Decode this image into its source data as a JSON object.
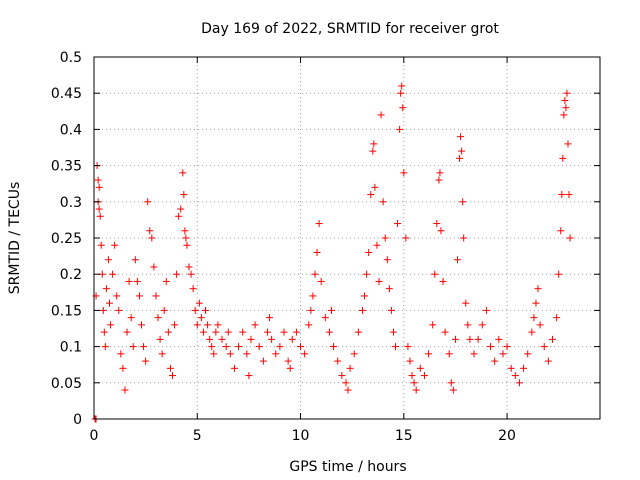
{
  "chart_data": {
    "type": "scatter",
    "title": "Day 169 of 2022, SRMTID for receiver grot",
    "xlabel": "GPS time / hours",
    "ylabel": "SRMTID / TECUs",
    "xlim": [
      0,
      24.5
    ],
    "ylim": [
      0,
      0.5
    ],
    "xticks": [
      0,
      5,
      10,
      15,
      20
    ],
    "xtick_labels": [
      "0",
      "5",
      "10",
      "15",
      "20"
    ],
    "yticks": [
      0,
      0.05,
      0.1,
      0.15,
      0.2,
      0.25,
      0.3,
      0.35,
      0.4,
      0.45,
      0.5
    ],
    "ytick_labels": [
      "0",
      "0.05",
      "0.1",
      "0.15",
      "0.2",
      "0.25",
      "0.3",
      "0.35",
      "0.4",
      "0.45",
      "0.5"
    ],
    "grid": true,
    "marker": "+",
    "color": "#ff0000",
    "series": [
      {
        "name": "SRMTID",
        "points": [
          [
            0.05,
            0.0
          ],
          [
            0.1,
            0.0
          ],
          [
            0.1,
            0.17
          ],
          [
            0.15,
            0.35
          ],
          [
            0.2,
            0.33
          ],
          [
            0.2,
            0.3
          ],
          [
            0.25,
            0.29
          ],
          [
            0.3,
            0.28
          ],
          [
            0.25,
            0.32
          ],
          [
            0.35,
            0.24
          ],
          [
            0.4,
            0.2
          ],
          [
            0.45,
            0.15
          ],
          [
            0.5,
            0.12
          ],
          [
            0.55,
            0.1
          ],
          [
            0.6,
            0.18
          ],
          [
            0.7,
            0.22
          ],
          [
            0.75,
            0.16
          ],
          [
            0.8,
            0.13
          ],
          [
            0.9,
            0.2
          ],
          [
            1.0,
            0.24
          ],
          [
            1.1,
            0.17
          ],
          [
            1.2,
            0.15
          ],
          [
            1.3,
            0.09
          ],
          [
            1.4,
            0.07
          ],
          [
            1.5,
            0.04
          ],
          [
            1.6,
            0.12
          ],
          [
            1.7,
            0.19
          ],
          [
            1.8,
            0.14
          ],
          [
            1.9,
            0.1
          ],
          [
            2.0,
            0.22
          ],
          [
            2.1,
            0.19
          ],
          [
            2.2,
            0.17
          ],
          [
            2.3,
            0.13
          ],
          [
            2.4,
            0.1
          ],
          [
            2.5,
            0.08
          ],
          [
            2.6,
            0.3
          ],
          [
            2.7,
            0.26
          ],
          [
            2.8,
            0.25
          ],
          [
            2.9,
            0.21
          ],
          [
            3.0,
            0.17
          ],
          [
            3.1,
            0.14
          ],
          [
            3.2,
            0.11
          ],
          [
            3.3,
            0.09
          ],
          [
            3.4,
            0.15
          ],
          [
            3.5,
            0.19
          ],
          [
            3.6,
            0.12
          ],
          [
            3.7,
            0.07
          ],
          [
            3.8,
            0.06
          ],
          [
            3.9,
            0.13
          ],
          [
            4.0,
            0.2
          ],
          [
            4.1,
            0.28
          ],
          [
            4.2,
            0.29
          ],
          [
            4.3,
            0.34
          ],
          [
            4.35,
            0.31
          ],
          [
            4.4,
            0.26
          ],
          [
            4.45,
            0.25
          ],
          [
            4.5,
            0.24
          ],
          [
            4.6,
            0.21
          ],
          [
            4.7,
            0.2
          ],
          [
            4.8,
            0.18
          ],
          [
            4.9,
            0.15
          ],
          [
            5.0,
            0.13
          ],
          [
            5.1,
            0.16
          ],
          [
            5.2,
            0.14
          ],
          [
            5.3,
            0.12
          ],
          [
            5.4,
            0.15
          ],
          [
            5.5,
            0.13
          ],
          [
            5.6,
            0.11
          ],
          [
            5.7,
            0.1
          ],
          [
            5.8,
            0.09
          ],
          [
            5.9,
            0.12
          ],
          [
            6.0,
            0.13
          ],
          [
            6.2,
            0.11
          ],
          [
            6.4,
            0.1
          ],
          [
            6.5,
            0.12
          ],
          [
            6.6,
            0.09
          ],
          [
            6.8,
            0.07
          ],
          [
            7.0,
            0.1
          ],
          [
            7.2,
            0.12
          ],
          [
            7.4,
            0.09
          ],
          [
            7.5,
            0.06
          ],
          [
            7.6,
            0.11
          ],
          [
            7.8,
            0.13
          ],
          [
            8.0,
            0.1
          ],
          [
            8.2,
            0.08
          ],
          [
            8.4,
            0.12
          ],
          [
            8.5,
            0.14
          ],
          [
            8.6,
            0.11
          ],
          [
            8.8,
            0.09
          ],
          [
            9.0,
            0.1
          ],
          [
            9.2,
            0.12
          ],
          [
            9.4,
            0.08
          ],
          [
            9.5,
            0.07
          ],
          [
            9.6,
            0.11
          ],
          [
            9.8,
            0.12
          ],
          [
            10.0,
            0.1
          ],
          [
            10.2,
            0.09
          ],
          [
            10.4,
            0.13
          ],
          [
            10.5,
            0.15
          ],
          [
            10.6,
            0.17
          ],
          [
            10.7,
            0.2
          ],
          [
            10.8,
            0.23
          ],
          [
            10.9,
            0.27
          ],
          [
            11.0,
            0.19
          ],
          [
            11.2,
            0.14
          ],
          [
            11.4,
            0.12
          ],
          [
            11.5,
            0.15
          ],
          [
            11.6,
            0.1
          ],
          [
            11.8,
            0.08
          ],
          [
            12.0,
            0.06
          ],
          [
            12.2,
            0.05
          ],
          [
            12.3,
            0.04
          ],
          [
            12.4,
            0.07
          ],
          [
            12.6,
            0.09
          ],
          [
            12.8,
            0.12
          ],
          [
            13.0,
            0.15
          ],
          [
            13.1,
            0.17
          ],
          [
            13.2,
            0.2
          ],
          [
            13.3,
            0.23
          ],
          [
            13.4,
            0.31
          ],
          [
            13.5,
            0.37
          ],
          [
            13.55,
            0.38
          ],
          [
            13.6,
            0.32
          ],
          [
            13.7,
            0.24
          ],
          [
            13.8,
            0.19
          ],
          [
            13.9,
            0.42
          ],
          [
            14.0,
            0.3
          ],
          [
            14.1,
            0.25
          ],
          [
            14.2,
            0.22
          ],
          [
            14.3,
            0.18
          ],
          [
            14.4,
            0.15
          ],
          [
            14.5,
            0.12
          ],
          [
            14.6,
            0.1
          ],
          [
            14.7,
            0.27
          ],
          [
            14.8,
            0.4
          ],
          [
            14.85,
            0.45
          ],
          [
            14.9,
            0.46
          ],
          [
            14.95,
            0.43
          ],
          [
            15.0,
            0.34
          ],
          [
            15.1,
            0.25
          ],
          [
            15.2,
            0.1
          ],
          [
            15.3,
            0.08
          ],
          [
            15.4,
            0.06
          ],
          [
            15.5,
            0.05
          ],
          [
            15.6,
            0.04
          ],
          [
            15.8,
            0.07
          ],
          [
            16.0,
            0.06
          ],
          [
            16.2,
            0.09
          ],
          [
            16.4,
            0.13
          ],
          [
            16.5,
            0.2
          ],
          [
            16.6,
            0.27
          ],
          [
            16.7,
            0.33
          ],
          [
            16.75,
            0.34
          ],
          [
            16.8,
            0.26
          ],
          [
            16.9,
            0.19
          ],
          [
            17.0,
            0.12
          ],
          [
            17.2,
            0.09
          ],
          [
            17.3,
            0.05
          ],
          [
            17.4,
            0.04
          ],
          [
            17.5,
            0.11
          ],
          [
            17.6,
            0.22
          ],
          [
            17.7,
            0.36
          ],
          [
            17.75,
            0.39
          ],
          [
            17.8,
            0.37
          ],
          [
            17.85,
            0.3
          ],
          [
            17.9,
            0.25
          ],
          [
            18.0,
            0.16
          ],
          [
            18.1,
            0.13
          ],
          [
            18.2,
            0.11
          ],
          [
            18.4,
            0.09
          ],
          [
            18.6,
            0.11
          ],
          [
            18.8,
            0.13
          ],
          [
            19.0,
            0.15
          ],
          [
            19.2,
            0.1
          ],
          [
            19.4,
            0.08
          ],
          [
            19.6,
            0.11
          ],
          [
            19.8,
            0.09
          ],
          [
            20.0,
            0.1
          ],
          [
            20.2,
            0.07
          ],
          [
            20.4,
            0.06
          ],
          [
            20.6,
            0.05
          ],
          [
            20.8,
            0.07
          ],
          [
            21.0,
            0.09
          ],
          [
            21.2,
            0.12
          ],
          [
            21.3,
            0.14
          ],
          [
            21.4,
            0.16
          ],
          [
            21.5,
            0.18
          ],
          [
            21.6,
            0.13
          ],
          [
            21.8,
            0.1
          ],
          [
            22.0,
            0.08
          ],
          [
            22.2,
            0.11
          ],
          [
            22.4,
            0.14
          ],
          [
            22.5,
            0.2
          ],
          [
            22.6,
            0.26
          ],
          [
            22.65,
            0.31
          ],
          [
            22.7,
            0.36
          ],
          [
            22.75,
            0.42
          ],
          [
            22.8,
            0.44
          ],
          [
            22.85,
            0.43
          ],
          [
            22.9,
            0.45
          ],
          [
            22.95,
            0.38
          ],
          [
            23.0,
            0.31
          ],
          [
            23.05,
            0.25
          ]
        ]
      }
    ]
  }
}
